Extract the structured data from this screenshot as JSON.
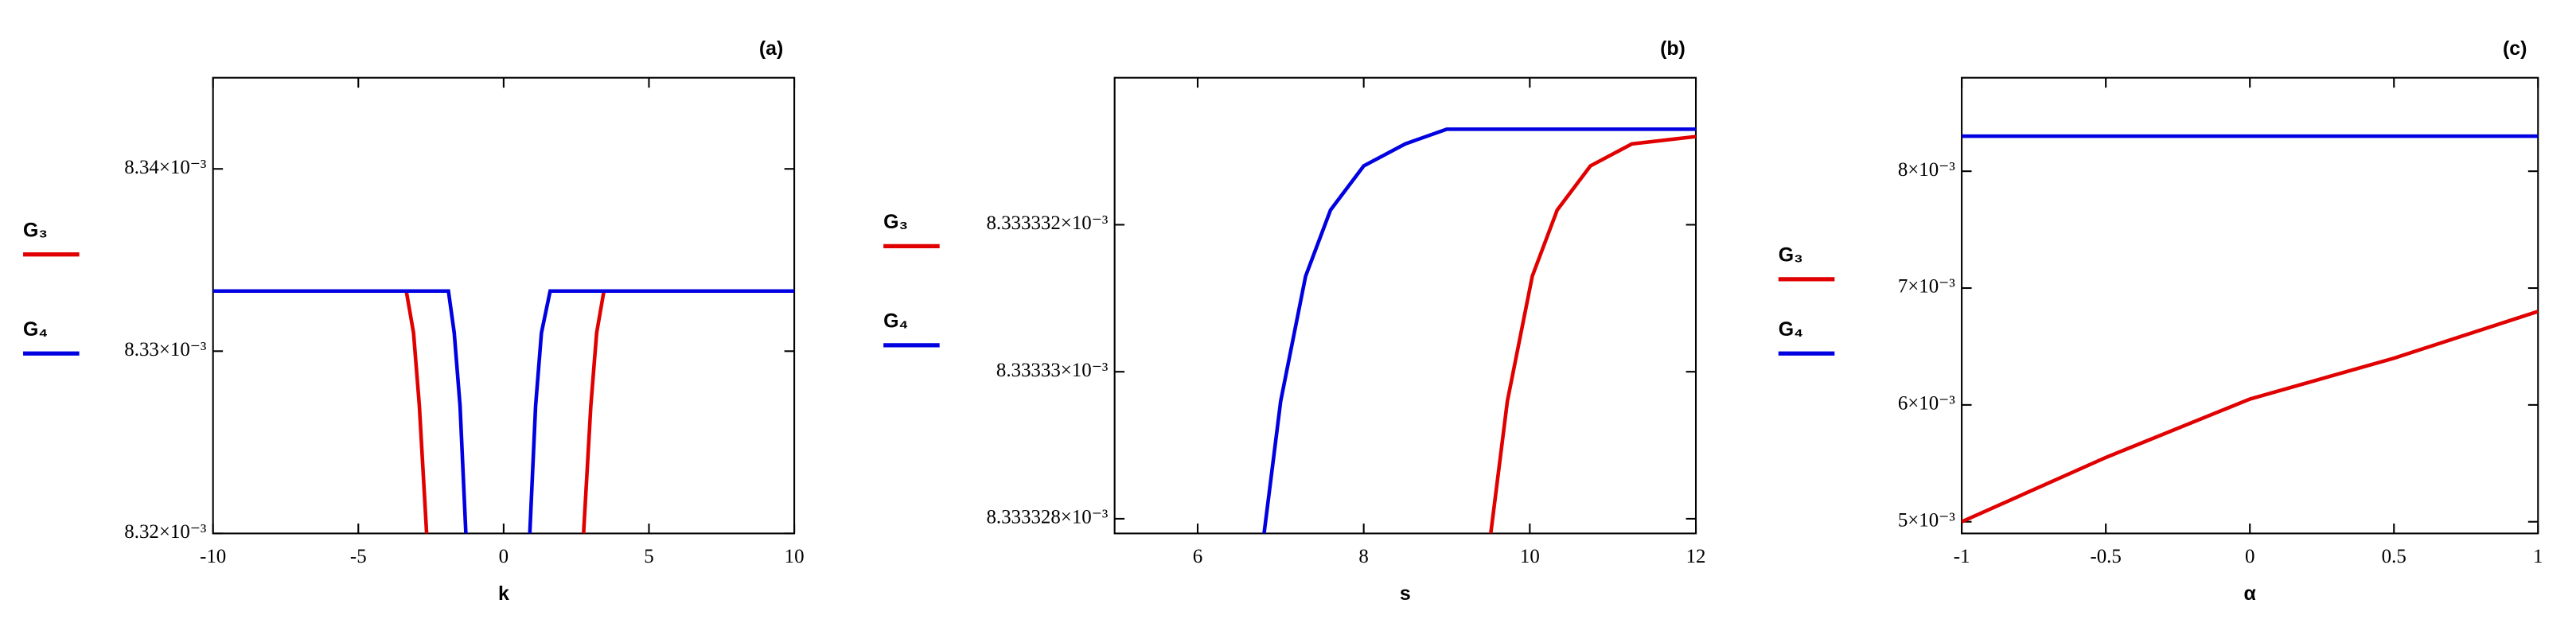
{
  "chart_data": [
    {
      "type": "line",
      "title": "(a)",
      "x_label": "k",
      "xlim": [
        -10,
        10
      ],
      "xticks": [
        -10,
        -5,
        0,
        5,
        10
      ],
      "ylim": [
        0.00832,
        0.008345
      ],
      "yticks": [
        {
          "value": 0.00832,
          "label": "8.32×10⁻³"
        },
        {
          "value": 0.00833,
          "label": "8.33×10⁻³"
        },
        {
          "value": 0.00834,
          "label": "8.34×10⁻³"
        }
      ],
      "series": [
        {
          "name": "G₃",
          "color": "#e00000",
          "x": [
            -3.35,
            -3.1,
            -2.9,
            -2.65,
            null,
            2.75,
            3.0,
            3.2,
            3.45
          ],
          "values": [
            0.0083333,
            0.008331,
            0.008327,
            0.00832,
            null,
            0.00832,
            0.008327,
            0.008331,
            0.0083333
          ]
        },
        {
          "name": "G₄",
          "color": "#0000e0",
          "x": [
            -10,
            -1.9,
            -1.7,
            -1.5,
            -1.3,
            null,
            0.9,
            1.1,
            1.3,
            1.6,
            10
          ],
          "values": [
            0.0083333,
            0.0083333,
            0.008331,
            0.008327,
            0.00832,
            null,
            0.00832,
            0.008327,
            0.008331,
            0.0083333,
            0.0083333
          ]
        }
      ]
    },
    {
      "type": "line",
      "title": "(b)",
      "x_label": "s",
      "xlim": [
        5,
        12
      ],
      "xticks": [
        6,
        8,
        10,
        12
      ],
      "ylim": [
        0.0083333278,
        0.008333334
      ],
      "yticks": [
        {
          "value": 0.008333328,
          "label": "8.333328×10⁻³"
        },
        {
          "value": 0.00833333,
          "label": "8.33333×10⁻³"
        },
        {
          "value": 0.008333332,
          "label": "8.333332×10⁻³"
        }
      ],
      "series": [
        {
          "name": "G₃",
          "color": "#e00000",
          "x": [
            9.53,
            9.73,
            10.03,
            10.33,
            10.73,
            11.23,
            12
          ],
          "values": [
            0.0083333278,
            0.0083333296,
            0.0083333313,
            0.0083333322,
            0.0083333328,
            0.0083333331,
            0.0083333332
          ]
        },
        {
          "name": "G₄",
          "color": "#0000e0",
          "x": [
            6.8,
            7.0,
            7.3,
            7.6,
            8,
            8.5,
            9,
            12
          ],
          "values": [
            0.0083333278,
            0.0083333296,
            0.0083333313,
            0.0083333322,
            0.0083333328,
            0.0083333331,
            0.0083333333,
            0.0083333333
          ]
        }
      ]
    },
    {
      "type": "line",
      "title": "(c)",
      "x_label": "α",
      "xlim": [
        -1,
        1
      ],
      "xticks": [
        -1,
        -0.5,
        0,
        0.5,
        1
      ],
      "ylim": [
        0.0049,
        0.0088
      ],
      "yticks": [
        {
          "value": 0.005,
          "label": "5×10⁻³"
        },
        {
          "value": 0.006,
          "label": "6×10⁻³"
        },
        {
          "value": 0.007,
          "label": "7×10⁻³"
        },
        {
          "value": 0.008,
          "label": "8×10⁻³"
        }
      ],
      "series": [
        {
          "name": "G₃",
          "color": "#e00000",
          "x": [
            -1,
            -0.5,
            0,
            0.5,
            1
          ],
          "values": [
            0.005,
            0.00555,
            0.00605,
            0.0064,
            0.0068
          ]
        },
        {
          "name": "G₄",
          "color": "#0000e0",
          "x": [
            -1,
            1
          ],
          "values": [
            0.0083,
            0.0083
          ]
        }
      ]
    }
  ]
}
